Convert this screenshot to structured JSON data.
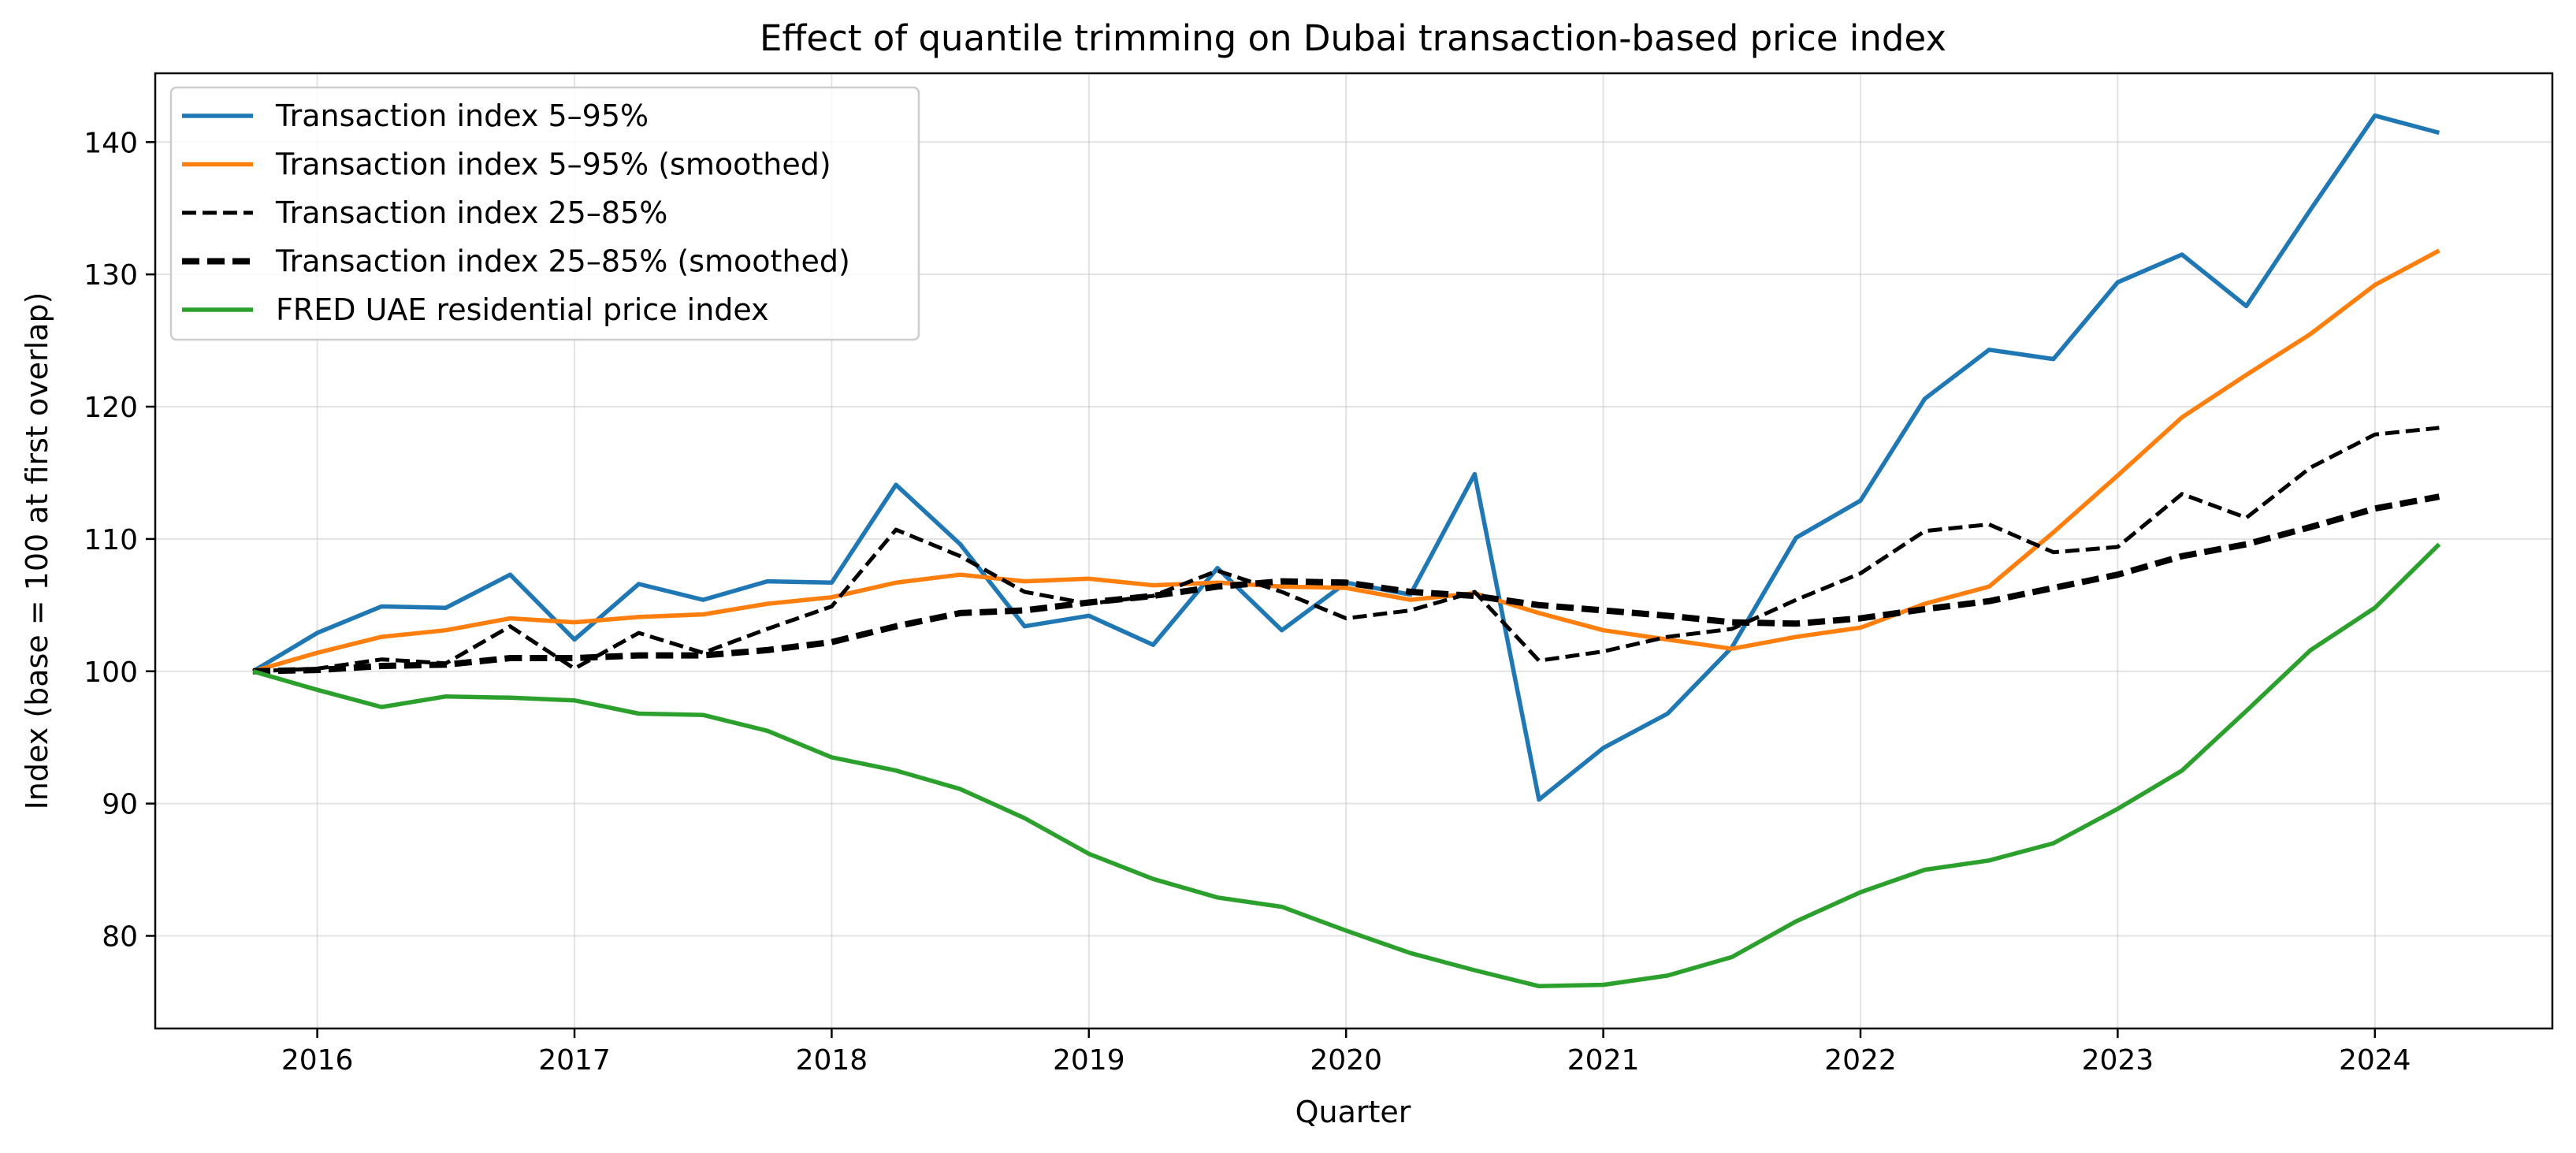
{
  "chart_data": {
    "type": "line",
    "title": "Effect of quantile trimming on Dubai transaction-based price index",
    "xlabel": "Quarter",
    "ylabel": "Index (base = 100 at first overlap)",
    "xlim": [
      2015.37,
      2024.69
    ],
    "ylim": [
      73,
      145.2
    ],
    "grid": true,
    "legend_position": "top-left",
    "x_ticks": [
      2016,
      2017,
      2018,
      2019,
      2020,
      2021,
      2022,
      2023,
      2024
    ],
    "x_tick_labels": [
      "2016",
      "2017",
      "2018",
      "2019",
      "2020",
      "2021",
      "2022",
      "2023",
      "2024"
    ],
    "y_ticks": [
      80,
      90,
      100,
      110,
      120,
      130,
      140
    ],
    "y_tick_labels": [
      "80",
      "90",
      "100",
      "110",
      "120",
      "130",
      "140"
    ],
    "x": [
      2015.75,
      2016.0,
      2016.25,
      2016.5,
      2016.75,
      2017.0,
      2017.25,
      2017.5,
      2017.75,
      2018.0,
      2018.25,
      2018.5,
      2018.75,
      2019.0,
      2019.25,
      2019.5,
      2019.75,
      2020.0,
      2020.25,
      2020.5,
      2020.75,
      2021.0,
      2021.25,
      2021.5,
      2021.75,
      2022.0,
      2022.25,
      2022.5,
      2022.75,
      2023.0,
      2023.25,
      2023.5,
      2023.75,
      2024.0,
      2024.25
    ],
    "series": [
      {
        "name": "Transaction index 5–95%",
        "color": "#1f77b4",
        "style": "solid",
        "values": [
          100.0,
          102.9,
          104.9,
          104.8,
          107.3,
          102.4,
          106.6,
          105.4,
          106.8,
          106.7,
          114.1,
          109.6,
          103.4,
          104.2,
          102.0,
          107.8,
          103.1,
          106.7,
          105.8,
          114.9,
          90.3,
          94.2,
          96.8,
          101.8,
          110.1,
          112.9,
          120.6,
          124.3,
          123.6,
          129.4,
          131.5,
          127.6,
          134.9,
          142.0,
          140.7
        ]
      },
      {
        "name": "Transaction index 5–95% (smoothed)",
        "color": "#ff7f0e",
        "style": "solid",
        "values": [
          100.0,
          101.4,
          102.6,
          103.1,
          104.0,
          103.7,
          104.1,
          104.3,
          105.1,
          105.6,
          106.7,
          107.3,
          106.8,
          107.0,
          106.5,
          106.7,
          106.4,
          106.3,
          105.4,
          105.9,
          104.4,
          103.1,
          102.4,
          101.7,
          102.6,
          103.3,
          105.1,
          106.4,
          110.5,
          114.8,
          119.2,
          122.4,
          125.5,
          129.2,
          131.8
        ]
      },
      {
        "name": "Transaction index 25–85%",
        "color": "#000000",
        "style": "dashed",
        "values": [
          100.0,
          100.2,
          100.9,
          100.6,
          103.4,
          100.2,
          102.9,
          101.4,
          103.2,
          104.9,
          110.7,
          108.7,
          106.0,
          105.1,
          105.7,
          107.6,
          106.0,
          104.0,
          104.6,
          106.0,
          100.8,
          101.5,
          102.6,
          103.2,
          105.4,
          107.4,
          110.6,
          111.1,
          109.0,
          109.4,
          113.4,
          111.6,
          115.4,
          117.9,
          118.4
        ]
      },
      {
        "name": "Transaction index 25–85% (smoothed)",
        "color": "#000000",
        "style": "dashed-thick",
        "values": [
          100.0,
          100.1,
          100.4,
          100.5,
          101.0,
          101.0,
          101.2,
          101.2,
          101.6,
          102.2,
          103.4,
          104.4,
          104.6,
          105.2,
          105.7,
          106.4,
          106.8,
          106.7,
          106.0,
          105.7,
          105.0,
          104.6,
          104.2,
          103.7,
          103.6,
          104.0,
          104.7,
          105.3,
          106.3,
          107.3,
          108.7,
          109.6,
          110.9,
          112.3,
          113.2
        ]
      },
      {
        "name": "FRED UAE residential price index",
        "color": "#2ca02c",
        "style": "solid",
        "values": [
          100.0,
          98.6,
          97.3,
          98.1,
          98.0,
          97.8,
          96.8,
          96.7,
          95.5,
          93.5,
          92.5,
          91.1,
          88.9,
          86.2,
          84.3,
          82.9,
          82.2,
          80.4,
          78.7,
          77.4,
          76.2,
          76.3,
          77.0,
          78.4,
          81.1,
          83.3,
          85.0,
          85.7,
          87.0,
          89.6,
          92.5,
          97.0,
          101.6,
          104.8,
          109.6
        ]
      }
    ]
  }
}
